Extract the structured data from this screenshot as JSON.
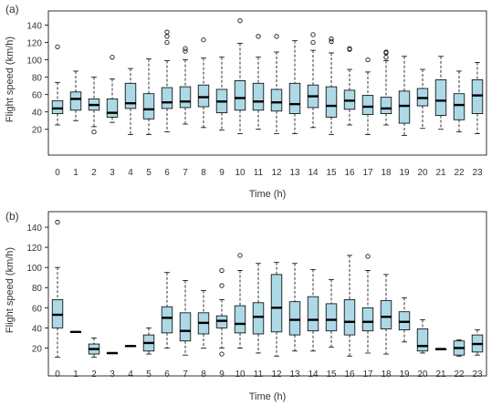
{
  "chart_data": [
    {
      "type": "box",
      "panel_label": "(a)",
      "xlabel": "Time (h)",
      "ylabel": "Flight speed (km/h)",
      "ylim": [
        5,
        150
      ],
      "yticks": [
        20,
        40,
        60,
        80,
        100,
        120,
        140
      ],
      "box_color": "#add8e6",
      "categories": [
        "0",
        "1",
        "2",
        "3",
        "4",
        "5",
        "6",
        "7",
        "8",
        "9",
        "10",
        "11",
        "12",
        "13",
        "14",
        "15",
        "16",
        "17",
        "18",
        "19",
        "20",
        "21",
        "22",
        "23"
      ],
      "boxes": [
        {
          "q1": 38,
          "median": 44,
          "q3": 53,
          "low": 25,
          "high": 74,
          "outliers": [
            115
          ]
        },
        {
          "q1": 42,
          "median": 55,
          "q3": 63,
          "low": 30,
          "high": 87,
          "outliers": []
        },
        {
          "q1": 42,
          "median": 48,
          "q3": 55,
          "low": 23,
          "high": 80,
          "outliers": [
            17
          ]
        },
        {
          "q1": 34,
          "median": 39,
          "q3": 55,
          "low": 28,
          "high": 78,
          "outliers": [
            103
          ]
        },
        {
          "q1": 44,
          "median": 50,
          "q3": 73,
          "low": 14,
          "high": 90,
          "outliers": []
        },
        {
          "q1": 32,
          "median": 43,
          "q3": 61,
          "low": 14,
          "high": 101,
          "outliers": []
        },
        {
          "q1": 44,
          "median": 51,
          "q3": 68,
          "low": 17,
          "high": 99,
          "outliers": [
            120,
            127,
            132
          ]
        },
        {
          "q1": 45,
          "median": 52,
          "q3": 69,
          "low": 26,
          "high": 100,
          "outliers": [
            110,
            113
          ]
        },
        {
          "q1": 46,
          "median": 57,
          "q3": 71,
          "low": 22,
          "high": 102,
          "outliers": [
            123
          ]
        },
        {
          "q1": 39,
          "median": 52,
          "q3": 66,
          "low": 19,
          "high": 103,
          "outliers": []
        },
        {
          "q1": 42,
          "median": 56,
          "q3": 76,
          "low": 15,
          "high": 119,
          "outliers": [
            145
          ]
        },
        {
          "q1": 42,
          "median": 52,
          "q3": 73,
          "low": 20,
          "high": 103,
          "outliers": [
            127
          ]
        },
        {
          "q1": 41,
          "median": 51,
          "q3": 66,
          "low": 15,
          "high": 109,
          "outliers": [
            127
          ]
        },
        {
          "q1": 38,
          "median": 49,
          "q3": 73,
          "low": 15,
          "high": 122,
          "outliers": []
        },
        {
          "q1": 45,
          "median": 58,
          "q3": 71,
          "low": 22,
          "high": 111,
          "outliers": [
            120,
            129
          ]
        },
        {
          "q1": 34,
          "median": 47,
          "q3": 69,
          "low": 14,
          "high": 108,
          "outliers": [
            121,
            124
          ]
        },
        {
          "q1": 43,
          "median": 53,
          "q3": 65,
          "low": 25,
          "high": 89,
          "outliers": [
            112,
            113
          ]
        },
        {
          "q1": 37,
          "median": 46,
          "q3": 59,
          "low": 14,
          "high": 86,
          "outliers": [
            100
          ]
        },
        {
          "q1": 38,
          "median": 44,
          "q3": 57,
          "low": 25,
          "high": 99,
          "outliers": [
            103,
            108,
            109
          ]
        },
        {
          "q1": 27,
          "median": 47,
          "q3": 64,
          "low": 13,
          "high": 104,
          "outliers": []
        },
        {
          "q1": 47,
          "median": 56,
          "q3": 67,
          "low": 21,
          "high": 89,
          "outliers": []
        },
        {
          "q1": 36,
          "median": 53,
          "q3": 77,
          "low": 20,
          "high": 104,
          "outliers": []
        },
        {
          "q1": 31,
          "median": 48,
          "q3": 61,
          "low": 17,
          "high": 87,
          "outliers": []
        },
        {
          "q1": 38,
          "median": 59,
          "q3": 77,
          "low": 15,
          "high": 97,
          "outliers": []
        }
      ]
    },
    {
      "type": "box",
      "panel_label": "(b)",
      "xlabel": "Time (h)",
      "ylabel": "Flight speed (km/h)",
      "ylim": [
        5,
        150
      ],
      "yticks": [
        20,
        40,
        60,
        80,
        100,
        120,
        140
      ],
      "box_color": "#add8e6",
      "categories": [
        "0",
        "1",
        "2",
        "3",
        "4",
        "5",
        "6",
        "7",
        "8",
        "9",
        "10",
        "11",
        "12",
        "13",
        "14",
        "15",
        "16",
        "17",
        "18",
        "19",
        "20",
        "21",
        "22",
        "23"
      ],
      "boxes": [
        {
          "q1": 40,
          "median": 53,
          "q3": 68,
          "low": 11,
          "high": 100,
          "outliers": [
            145
          ]
        },
        {
          "q1": 36,
          "median": 36,
          "q3": 36,
          "low": 36,
          "high": 36,
          "outliers": []
        },
        {
          "q1": 14,
          "median": 19,
          "q3": 24,
          "low": 11,
          "high": 30,
          "outliers": []
        },
        {
          "q1": 15,
          "median": 15,
          "q3": 15,
          "low": 15,
          "high": 15,
          "outliers": []
        },
        {
          "q1": 22,
          "median": 22,
          "q3": 22,
          "low": 22,
          "high": 22,
          "outliers": []
        },
        {
          "q1": 17,
          "median": 25,
          "q3": 33,
          "low": 14,
          "high": 40,
          "outliers": []
        },
        {
          "q1": 35,
          "median": 50,
          "q3": 61,
          "low": 20,
          "high": 95,
          "outliers": []
        },
        {
          "q1": 27,
          "median": 37,
          "q3": 55,
          "low": 13,
          "high": 87,
          "outliers": []
        },
        {
          "q1": 34,
          "median": 45,
          "q3": 55,
          "low": 20,
          "high": 77,
          "outliers": []
        },
        {
          "q1": 40,
          "median": 47,
          "q3": 52,
          "low": 20,
          "high": 68,
          "outliers": [
            14,
            82,
            97
          ]
        },
        {
          "q1": 35,
          "median": 44,
          "q3": 62,
          "low": 20,
          "high": 97,
          "outliers": [
            112
          ]
        },
        {
          "q1": 34,
          "median": 51,
          "q3": 65,
          "low": 15,
          "high": 104,
          "outliers": []
        },
        {
          "q1": 36,
          "median": 60,
          "q3": 93,
          "low": 12,
          "high": 105,
          "outliers": []
        },
        {
          "q1": 33,
          "median": 48,
          "q3": 66,
          "low": 17,
          "high": 104,
          "outliers": []
        },
        {
          "q1": 37,
          "median": 48,
          "q3": 71,
          "low": 17,
          "high": 98,
          "outliers": []
        },
        {
          "q1": 37,
          "median": 48,
          "q3": 64,
          "low": 21,
          "high": 88,
          "outliers": []
        },
        {
          "q1": 33,
          "median": 46,
          "q3": 68,
          "low": 12,
          "high": 112,
          "outliers": []
        },
        {
          "q1": 37,
          "median": 46,
          "q3": 60,
          "low": 15,
          "high": 97,
          "outliers": [
            111
          ]
        },
        {
          "q1": 39,
          "median": 51,
          "q3": 67,
          "low": 14,
          "high": 93,
          "outliers": []
        },
        {
          "q1": 38,
          "median": 46,
          "q3": 56,
          "low": 26,
          "high": 70,
          "outliers": []
        },
        {
          "q1": 17,
          "median": 22,
          "q3": 39,
          "low": 15,
          "high": 48,
          "outliers": []
        },
        {
          "q1": 19,
          "median": 19,
          "q3": 19,
          "low": 19,
          "high": 19,
          "outliers": []
        },
        {
          "q1": 13,
          "median": 20,
          "q3": 27,
          "low": 12,
          "high": 28,
          "outliers": []
        },
        {
          "q1": 16,
          "median": 24,
          "q3": 33,
          "low": 13,
          "high": 38,
          "outliers": []
        }
      ]
    }
  ]
}
